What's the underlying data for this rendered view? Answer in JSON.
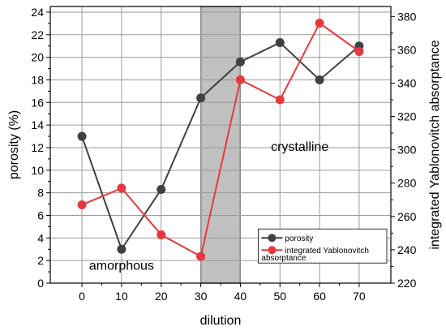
{
  "chart_data": {
    "type": "line",
    "x": [
      0,
      10,
      20,
      30,
      40,
      50,
      60,
      70
    ],
    "xlabel": "dilution",
    "ylabel": "porosity (%)",
    "y2label": "integrated Yablonovitch absorptance",
    "xlim": [
      -8,
      78
    ],
    "ylim": [
      0,
      24.5
    ],
    "y2lim": [
      220,
      386
    ],
    "xticks": [
      0,
      10,
      20,
      30,
      40,
      50,
      60,
      70
    ],
    "yticks": [
      0,
      2,
      4,
      6,
      8,
      10,
      12,
      14,
      16,
      18,
      20,
      22,
      24
    ],
    "y2ticks": [
      220,
      240,
      260,
      280,
      300,
      320,
      340,
      360,
      380
    ],
    "grid": true,
    "shaded_region": [
      30,
      40
    ],
    "series": [
      {
        "name": "porosity",
        "axis": "left",
        "color": "#404040",
        "values": [
          13.0,
          3.0,
          8.3,
          16.4,
          19.6,
          21.3,
          18.0,
          21.0
        ]
      },
      {
        "name": "integrated Yablonovitch absorptance",
        "axis": "right",
        "color": "#e8383d",
        "values": [
          267,
          277,
          249,
          236,
          342,
          330,
          376,
          359
        ]
      }
    ],
    "annotations": [
      {
        "text": "amorphous",
        "x": 10,
        "y": 1.2
      },
      {
        "text": "crystalline",
        "x": 55,
        "y": 11.7
      }
    ],
    "legend": {
      "position": "bottom-right",
      "entries": [
        "porosity",
        "integrated Yablonovitch",
        "absorptance"
      ]
    }
  }
}
